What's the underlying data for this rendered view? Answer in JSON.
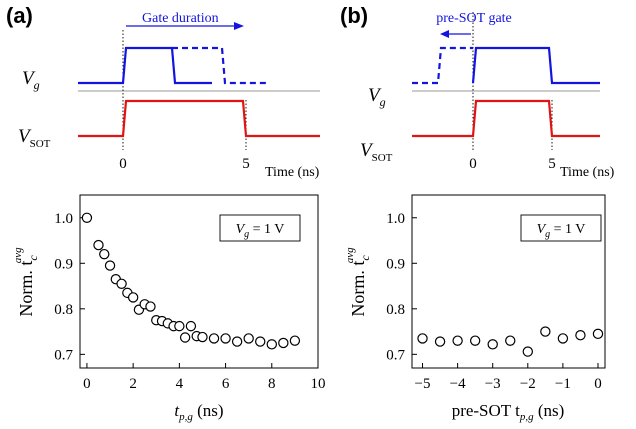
{
  "panels": {
    "a": {
      "label": "(a)",
      "annotation": "Gate duration",
      "vg_label": "V",
      "vg_sub": "g",
      "vsot_label": "V",
      "vsot_sub": "SOT",
      "ticks": [
        "0",
        "5"
      ],
      "time_label": "Time (ns)"
    },
    "b": {
      "label": "(b)",
      "annotation": "pre-SOT gate",
      "vg_label": "V",
      "vg_sub": "g",
      "vsot_label": "V",
      "vsot_sub": "SOT",
      "ticks": [
        "0",
        "5"
      ],
      "time_label": "Time (ns)"
    }
  },
  "colors": {
    "vg": "#1414e0",
    "vsot": "#e01414",
    "annotation": "#1414e0",
    "axis": "#000000",
    "marker": "#000000"
  },
  "chart_data": [
    {
      "type": "scatter",
      "panel": "a",
      "legend_text": "V",
      "legend_sub": "g",
      "legend_value": " = 1 V",
      "legend_position": "top-right",
      "ylabel_main": "Norm. t",
      "ylabel_sub": "c",
      "ylabel_sup": "avg",
      "xlabel_main": "t",
      "xlabel_sub": "p,g",
      "xlabel_unit": " (ns)",
      "xlim": [
        -0.3,
        10
      ],
      "ylim": [
        0.67,
        1.05
      ],
      "xticks": [
        0,
        2,
        4,
        6,
        8,
        10
      ],
      "yticks": [
        0.7,
        0.8,
        0.9,
        1.0
      ],
      "x": [
        0,
        0.5,
        0.75,
        1.0,
        1.25,
        1.5,
        1.75,
        2.0,
        2.25,
        2.5,
        2.75,
        3.0,
        3.25,
        3.5,
        3.75,
        4.0,
        4.25,
        4.5,
        4.75,
        5.0,
        5.5,
        6.0,
        6.5,
        7.0,
        7.5,
        8.0,
        8.5,
        9.0
      ],
      "y": [
        1.0,
        0.94,
        0.92,
        0.895,
        0.865,
        0.855,
        0.835,
        0.825,
        0.798,
        0.81,
        0.805,
        0.775,
        0.773,
        0.768,
        0.762,
        0.762,
        0.737,
        0.762,
        0.74,
        0.738,
        0.735,
        0.735,
        0.728,
        0.735,
        0.728,
        0.722,
        0.725,
        0.73
      ]
    },
    {
      "type": "scatter",
      "panel": "b",
      "legend_text": "V",
      "legend_sub": "g",
      "legend_value": " = 1 V",
      "legend_position": "top-right",
      "ylabel_main": "Norm. t",
      "ylabel_sub": "c",
      "ylabel_sup": "avg",
      "xlabel_main": "pre-SOT t",
      "xlabel_sub": "p,g",
      "xlabel_unit": " (ns)",
      "xlim": [
        -5.3,
        0.2
      ],
      "ylim": [
        0.67,
        1.05
      ],
      "xticks": [
        -5,
        -4,
        -3,
        -2,
        -1,
        0
      ],
      "xtick_labels": [
        "−5",
        "−4",
        "−3",
        "−2",
        "−1",
        "0"
      ],
      "yticks": [
        0.7,
        0.8,
        0.9,
        1.0
      ],
      "x": [
        -5.0,
        -4.5,
        -4.0,
        -3.5,
        -3.0,
        -2.5,
        -2.0,
        -1.5,
        -1.0,
        -0.5,
        0.0
      ],
      "y": [
        0.735,
        0.728,
        0.73,
        0.73,
        0.722,
        0.73,
        0.706,
        0.75,
        0.735,
        0.742,
        0.745
      ]
    }
  ]
}
